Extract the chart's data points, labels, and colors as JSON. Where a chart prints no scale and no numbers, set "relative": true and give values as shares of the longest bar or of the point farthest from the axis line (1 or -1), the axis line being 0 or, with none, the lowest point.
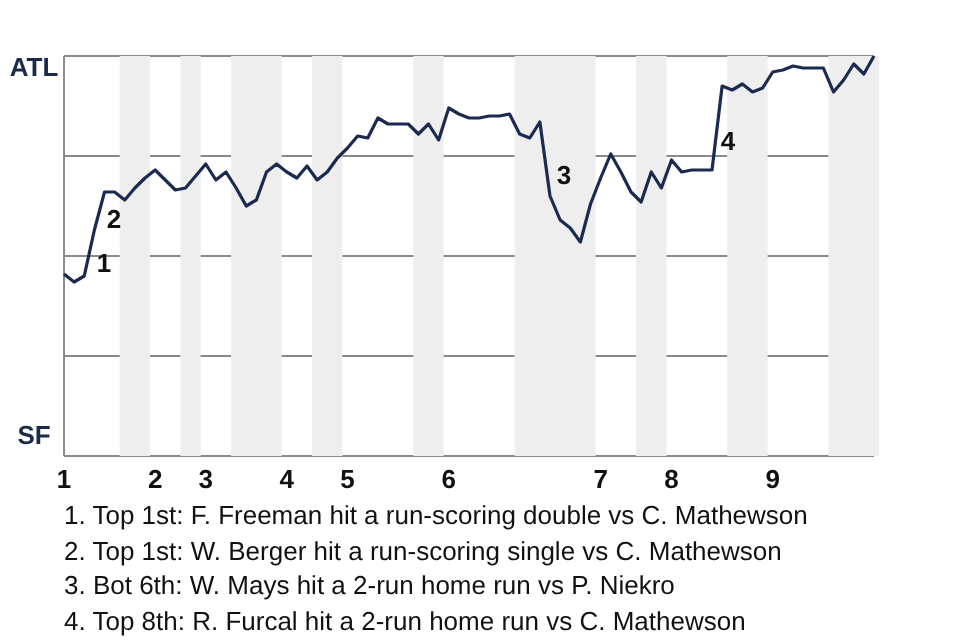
{
  "chart_data": {
    "type": "line",
    "relative": true,
    "grid": "y",
    "marker": "none",
    "line_style": "solid",
    "categories": [
      "1",
      null,
      null,
      null,
      null,
      null,
      null,
      null,
      null,
      "2",
      null,
      null,
      null,
      null,
      "3",
      null,
      null,
      null,
      null,
      null,
      null,
      null,
      "4",
      null,
      null,
      null,
      null,
      null,
      "5",
      null,
      null,
      null,
      null,
      null,
      null,
      null,
      null,
      null,
      "6",
      null,
      null,
      null,
      null,
      null,
      null,
      null,
      null,
      null,
      null,
      null,
      null,
      null,
      null,
      "7",
      null,
      null,
      null,
      null,
      null,
      null,
      "8",
      null,
      null,
      null,
      null,
      null,
      null,
      null,
      null,
      null,
      "9",
      null,
      null,
      null,
      null,
      null,
      null,
      null,
      null,
      null,
      null
    ],
    "series": [
      {
        "color": "#1b2a50",
        "values": [
          0.455,
          0.435,
          0.45,
          0.565,
          0.66,
          0.66,
          0.64,
          0.67,
          0.695,
          0.715,
          0.69,
          0.665,
          0.67,
          0.7,
          0.73,
          0.69,
          0.71,
          0.67,
          0.625,
          0.64,
          0.71,
          0.73,
          0.71,
          0.695,
          0.725,
          0.69,
          0.71,
          0.745,
          0.77,
          0.8,
          0.795,
          0.845,
          0.83,
          0.83,
          0.83,
          0.805,
          0.83,
          0.79,
          0.87,
          0.855,
          0.845,
          0.845,
          0.85,
          0.85,
          0.855,
          0.805,
          0.795,
          0.835,
          0.65,
          0.59,
          0.57,
          0.535,
          0.63,
          0.695,
          0.755,
          0.71,
          0.66,
          0.635,
          0.71,
          0.67,
          0.74,
          0.71,
          0.715,
          0.715,
          0.715,
          0.925,
          0.915,
          0.93,
          0.91,
          0.92,
          0.96,
          0.965,
          0.975,
          0.97,
          0.97,
          0.97,
          0.91,
          0.94,
          0.98,
          0.955,
          1
        ]
      }
    ],
    "annotations": [
      "ATL",
      "SF",
      "1",
      "2",
      "3",
      "4",
      "1. Top 1st: F. Freeman hit a run-scoring double vs C. Mathewson",
      "2. Top 1st: W. Berger hit a run-scoring single vs C. Mathewson",
      "3. Bot 6th: W. Mays hit a 2-run home run vs P. Niekro",
      "4. Top 8th: R. Furcal hit a 2-run home run vs C. Mathewson"
    ]
  }
}
